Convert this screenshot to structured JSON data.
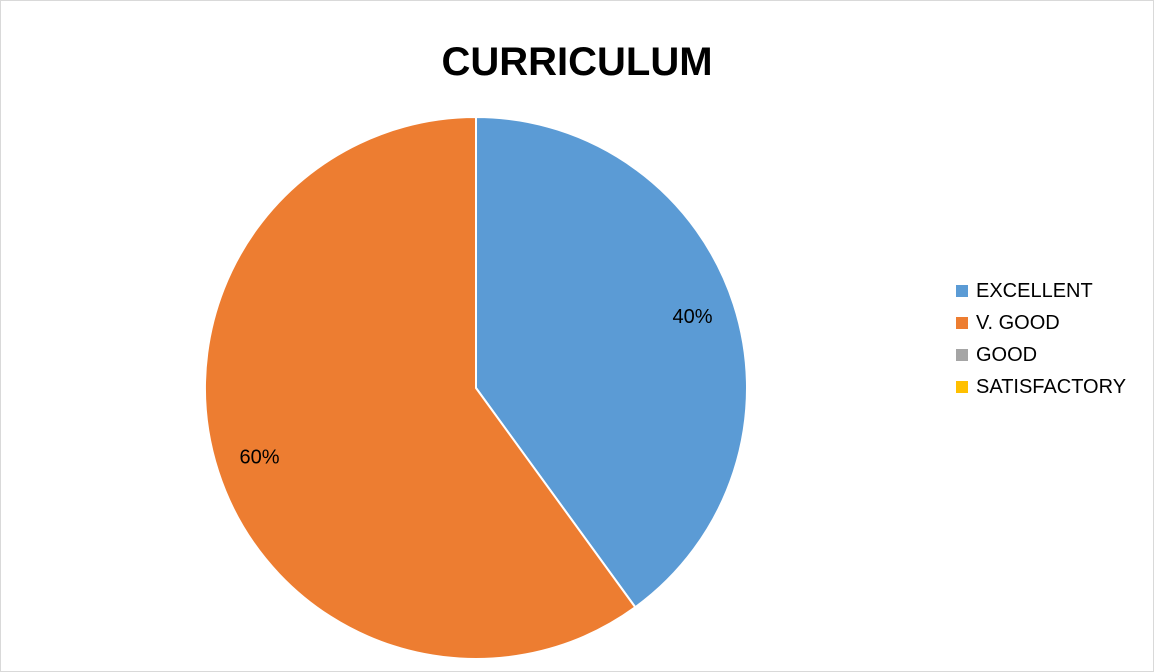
{
  "chart_data": {
    "type": "pie",
    "title": "CURRICULUM",
    "categories": [
      "EXCELLENT",
      "V. GOOD",
      "GOOD",
      "SATISFACTORY"
    ],
    "values": [
      40,
      60,
      0,
      0
    ],
    "data_labels": [
      "40%",
      "60%",
      "",
      ""
    ],
    "colors": [
      "#5b9bd5",
      "#ed7d31",
      "#a5a5a5",
      "#ffc000"
    ],
    "legend_position": "right"
  }
}
